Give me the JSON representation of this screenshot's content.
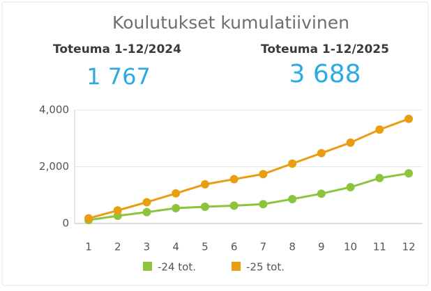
{
  "chart_data": {
    "type": "line",
    "title": "Koulutukset kumulatiivinen",
    "kpis": [
      {
        "label": "Toteuma 1-12/2024",
        "value": "1 767"
      },
      {
        "label": "Toteuma 1-12/2025",
        "value": "3 688"
      }
    ],
    "categories": [
      "1",
      "2",
      "3",
      "4",
      "5",
      "6",
      "7",
      "8",
      "9",
      "10",
      "11",
      "12"
    ],
    "series": [
      {
        "name": "-24 tot.",
        "color": "#8cc43c",
        "values": [
          120,
          270,
          400,
          540,
          590,
          630,
          680,
          860,
          1050,
          1280,
          1600,
          1767
        ]
      },
      {
        "name": "-25 tot.",
        "color": "#e89e10",
        "values": [
          180,
          460,
          750,
          1060,
          1380,
          1560,
          1740,
          2110,
          2480,
          2850,
          3310,
          3688
        ]
      }
    ],
    "ylim": [
      0,
      4000
    ],
    "yticks": [
      0,
      {
        "value": 2000,
        "label": "2,000"
      },
      {
        "value": 4000,
        "label": "4,000"
      }
    ],
    "grid": true,
    "legend": "bottom"
  }
}
